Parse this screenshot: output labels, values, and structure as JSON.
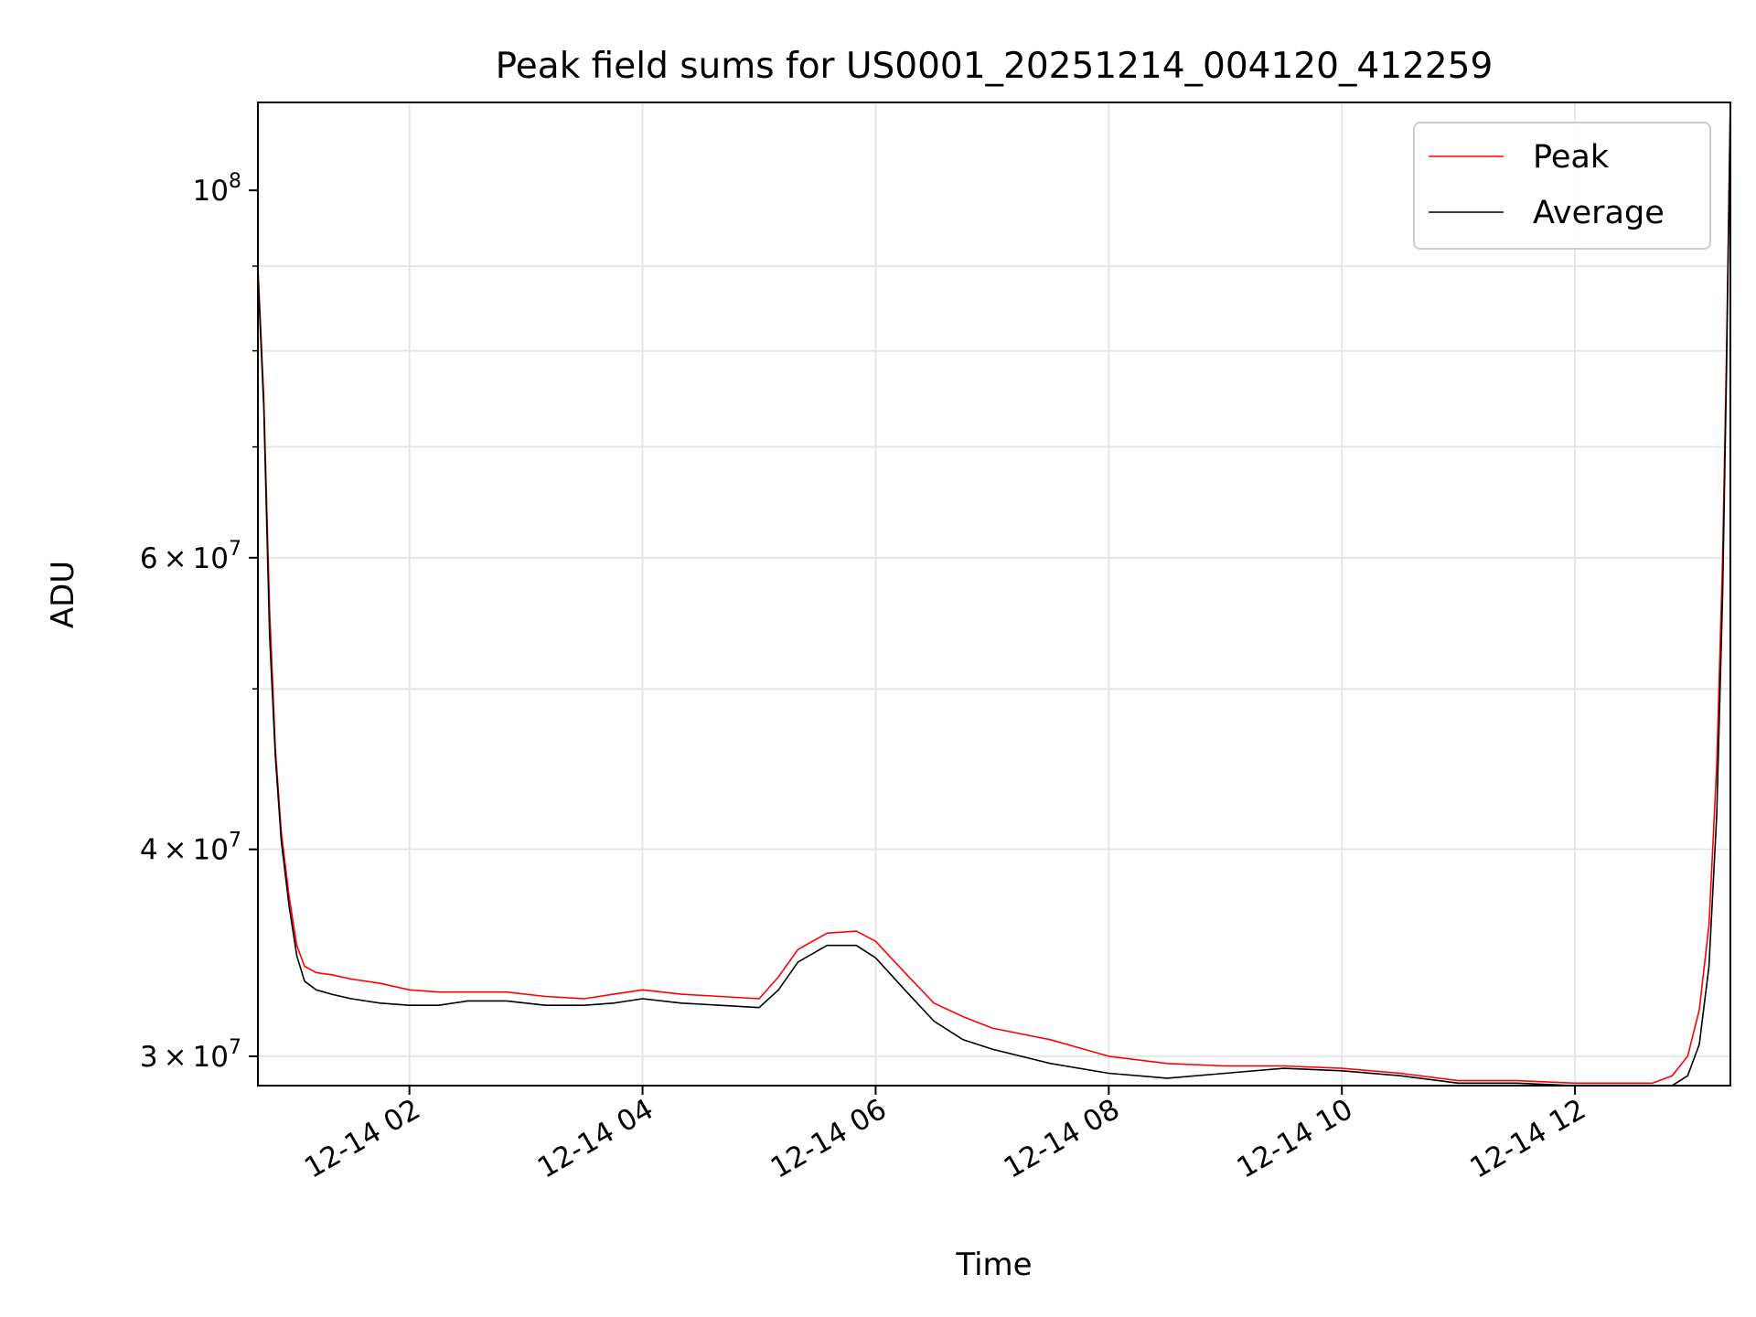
{
  "chart_data": {
    "type": "line",
    "title": "Peak field sums for US0001_20251214_004120_412259",
    "xlabel": "Time",
    "ylabel": "ADU",
    "yscale": "log",
    "xlim": [
      "2025-12-14 00:42",
      "2025-12-14 13:20"
    ],
    "ylim": [
      28800000,
      113000000
    ],
    "grid": true,
    "legend_placement": "top-right",
    "x_ticks": [
      {
        "value": "2025-12-14 02:00",
        "label": "12-14 02"
      },
      {
        "value": "2025-12-14 04:00",
        "label": "12-14 04"
      },
      {
        "value": "2025-12-14 06:00",
        "label": "12-14 06"
      },
      {
        "value": "2025-12-14 08:00",
        "label": "12-14 08"
      },
      {
        "value": "2025-12-14 10:00",
        "label": "12-14 10"
      },
      {
        "value": "2025-12-14 12:00",
        "label": "12-14 12"
      }
    ],
    "y_ticks": [
      {
        "value": 30000000,
        "mantissa": "3",
        "times": "×",
        "base": "10",
        "exp": "7"
      },
      {
        "value": 40000000,
        "mantissa": "4",
        "times": "×",
        "base": "10",
        "exp": "7"
      },
      {
        "value": 60000000,
        "mantissa": "6",
        "times": "×",
        "base": "10",
        "exp": "7"
      },
      {
        "value": 100000000,
        "mantissa": "",
        "times": "",
        "base": "10",
        "exp": "8"
      }
    ],
    "series": [
      {
        "name": "Peak",
        "color": "#ff0000",
        "x": [
          "2025-12-14 00:42",
          "2025-12-14 00:45",
          "2025-12-14 00:48",
          "2025-12-14 00:51",
          "2025-12-14 00:54",
          "2025-12-14 00:58",
          "2025-12-14 01:02",
          "2025-12-14 01:06",
          "2025-12-14 01:12",
          "2025-12-14 01:20",
          "2025-12-14 01:30",
          "2025-12-14 01:45",
          "2025-12-14 02:00",
          "2025-12-14 02:15",
          "2025-12-14 02:30",
          "2025-12-14 02:50",
          "2025-12-14 03:10",
          "2025-12-14 03:30",
          "2025-12-14 03:45",
          "2025-12-14 04:00",
          "2025-12-14 04:20",
          "2025-12-14 04:40",
          "2025-12-14 05:00",
          "2025-12-14 05:10",
          "2025-12-14 05:20",
          "2025-12-14 05:35",
          "2025-12-14 05:50",
          "2025-12-14 06:00",
          "2025-12-14 06:15",
          "2025-12-14 06:30",
          "2025-12-14 06:45",
          "2025-12-14 07:00",
          "2025-12-14 07:30",
          "2025-12-14 08:00",
          "2025-12-14 08:30",
          "2025-12-14 09:00",
          "2025-12-14 09:30",
          "2025-12-14 10:00",
          "2025-12-14 10:30",
          "2025-12-14 11:00",
          "2025-12-14 11:30",
          "2025-12-14 12:00",
          "2025-12-14 12:20",
          "2025-12-14 12:40",
          "2025-12-14 12:50",
          "2025-12-14 12:58",
          "2025-12-14 13:04",
          "2025-12-14 13:09",
          "2025-12-14 13:13",
          "2025-12-14 13:16",
          "2025-12-14 13:18",
          "2025-12-14 13:20"
        ],
        "y": [
          90000000,
          75000000,
          56000000,
          46000000,
          41000000,
          37500000,
          35000000,
          34000000,
          33700000,
          33600000,
          33400000,
          33200000,
          32900000,
          32800000,
          32800000,
          32800000,
          32600000,
          32500000,
          32700000,
          32900000,
          32700000,
          32600000,
          32500000,
          33500000,
          34800000,
          35600000,
          35700000,
          35200000,
          33700000,
          32300000,
          31700000,
          31200000,
          30700000,
          30000000,
          29700000,
          29600000,
          29600000,
          29500000,
          29300000,
          29000000,
          29000000,
          28900000,
          28900000,
          28900000,
          29200000,
          30000000,
          32000000,
          36000000,
          45000000,
          60000000,
          80000000,
          113000000
        ]
      },
      {
        "name": "Average",
        "color": "#000000",
        "x": [
          "2025-12-14 00:42",
          "2025-12-14 00:45",
          "2025-12-14 00:48",
          "2025-12-14 00:51",
          "2025-12-14 00:54",
          "2025-12-14 00:58",
          "2025-12-14 01:02",
          "2025-12-14 01:06",
          "2025-12-14 01:12",
          "2025-12-14 01:20",
          "2025-12-14 01:30",
          "2025-12-14 01:45",
          "2025-12-14 02:00",
          "2025-12-14 02:15",
          "2025-12-14 02:30",
          "2025-12-14 02:50",
          "2025-12-14 03:10",
          "2025-12-14 03:30",
          "2025-12-14 03:45",
          "2025-12-14 04:00",
          "2025-12-14 04:20",
          "2025-12-14 04:40",
          "2025-12-14 05:00",
          "2025-12-14 05:10",
          "2025-12-14 05:20",
          "2025-12-14 05:35",
          "2025-12-14 05:50",
          "2025-12-14 06:00",
          "2025-12-14 06:15",
          "2025-12-14 06:30",
          "2025-12-14 06:45",
          "2025-12-14 07:00",
          "2025-12-14 07:30",
          "2025-12-14 08:00",
          "2025-12-14 08:30",
          "2025-12-14 09:00",
          "2025-12-14 09:30",
          "2025-12-14 10:00",
          "2025-12-14 10:30",
          "2025-12-14 11:00",
          "2025-12-14 11:30",
          "2025-12-14 12:00",
          "2025-12-14 12:20",
          "2025-12-14 12:40",
          "2025-12-14 12:50",
          "2025-12-14 12:58",
          "2025-12-14 13:04",
          "2025-12-14 13:09",
          "2025-12-14 13:13",
          "2025-12-14 13:16",
          "2025-12-14 13:18",
          "2025-12-14 13:20"
        ],
        "y": [
          89000000,
          74000000,
          54000000,
          45500000,
          40500000,
          37000000,
          34500000,
          33300000,
          32900000,
          32700000,
          32500000,
          32300000,
          32200000,
          32200000,
          32400000,
          32400000,
          32200000,
          32200000,
          32300000,
          32500000,
          32300000,
          32200000,
          32100000,
          32900000,
          34200000,
          35000000,
          35000000,
          34400000,
          32900000,
          31500000,
          30700000,
          30300000,
          29700000,
          29300000,
          29100000,
          29300000,
          29500000,
          29400000,
          29200000,
          28900000,
          28900000,
          28800000,
          28700000,
          28700000,
          28800000,
          29200000,
          30500000,
          34000000,
          42000000,
          57000000,
          78000000,
          113000000
        ]
      }
    ]
  }
}
